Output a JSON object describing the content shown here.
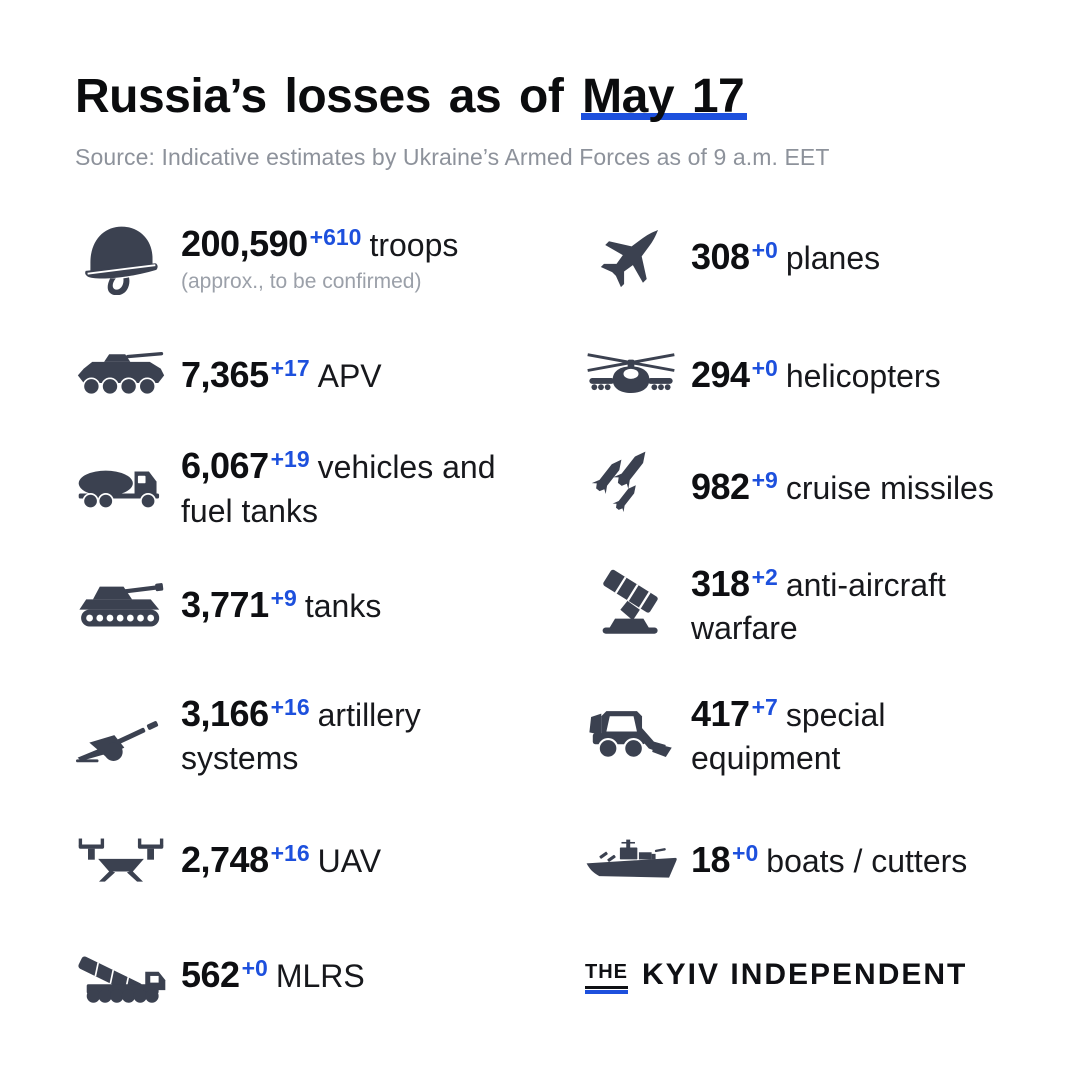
{
  "header": {
    "title_prefix": "Russia’s losses as of",
    "title_date": "May 17",
    "source": "Source: Indicative estimates by Ukraine’s Armed Forces as of 9 a.m. EET"
  },
  "colors": {
    "accent_blue": "#1d50dd",
    "icon_dark": "#3b4150",
    "number_black": "#0e0f12",
    "muted_gray": "#8d929b",
    "caption_gray": "#9ba0a9"
  },
  "stats": {
    "left": [
      {
        "icon": "helmet-icon",
        "value": "200,590",
        "delta": "+610",
        "label": "troops",
        "caption": "(approx., to be confirmed)"
      },
      {
        "icon": "apv-icon",
        "value": "7,365",
        "delta": "+17",
        "label": "APV"
      },
      {
        "icon": "fuel-truck-icon",
        "value": "6,067",
        "delta": "+19",
        "label": "vehicles and fuel tanks"
      },
      {
        "icon": "tank-icon",
        "value": "3,771",
        "delta": "+9",
        "label": "tanks"
      },
      {
        "icon": "artillery-icon",
        "value": "3,166",
        "delta": "+16",
        "label": "artillery systems"
      },
      {
        "icon": "uav-icon",
        "value": "2,748",
        "delta": "+16",
        "label": "UAV"
      },
      {
        "icon": "mlrs-icon",
        "value": "562",
        "delta": "+0",
        "label": "MLRS"
      }
    ],
    "right": [
      {
        "icon": "fighter-jet-icon",
        "value": "308",
        "delta": "+0",
        "label": "planes"
      },
      {
        "icon": "helicopter-icon",
        "value": "294",
        "delta": "+0",
        "label": "helicopters"
      },
      {
        "icon": "cruise-missiles-icon",
        "value": "982",
        "delta": "+9",
        "label": "cruise missiles"
      },
      {
        "icon": "anti-aircraft-icon",
        "value": "318",
        "delta": "+2",
        "label": "anti-aircraft warfare"
      },
      {
        "icon": "special-equipment-icon",
        "value": "417",
        "delta": "+7",
        "label": "special equipment"
      },
      {
        "icon": "warship-icon",
        "value": "18",
        "delta": "+0",
        "label": "boats / cutters"
      }
    ]
  },
  "logo": {
    "the": "THE",
    "name": "KYIV INDEPENDENT"
  },
  "chart_data": {
    "type": "table",
    "title": "Russia’s losses as of May 17",
    "source": "Indicative estimates by Ukraine’s Armed Forces as of 9 a.m. EET",
    "categories": [
      "troops",
      "APV",
      "vehicles and fuel tanks",
      "tanks",
      "artillery systems",
      "UAV",
      "MLRS",
      "planes",
      "helicopters",
      "cruise missiles",
      "anti-aircraft warfare",
      "special equipment",
      "boats / cutters"
    ],
    "values": [
      200590,
      7365,
      6067,
      3771,
      3166,
      2748,
      562,
      308,
      294,
      982,
      318,
      417,
      18
    ],
    "daily_change": [
      610,
      17,
      19,
      9,
      16,
      16,
      0,
      0,
      0,
      9,
      2,
      7,
      0
    ],
    "notes": {
      "troops": "(approx., to be confirmed)"
    }
  }
}
